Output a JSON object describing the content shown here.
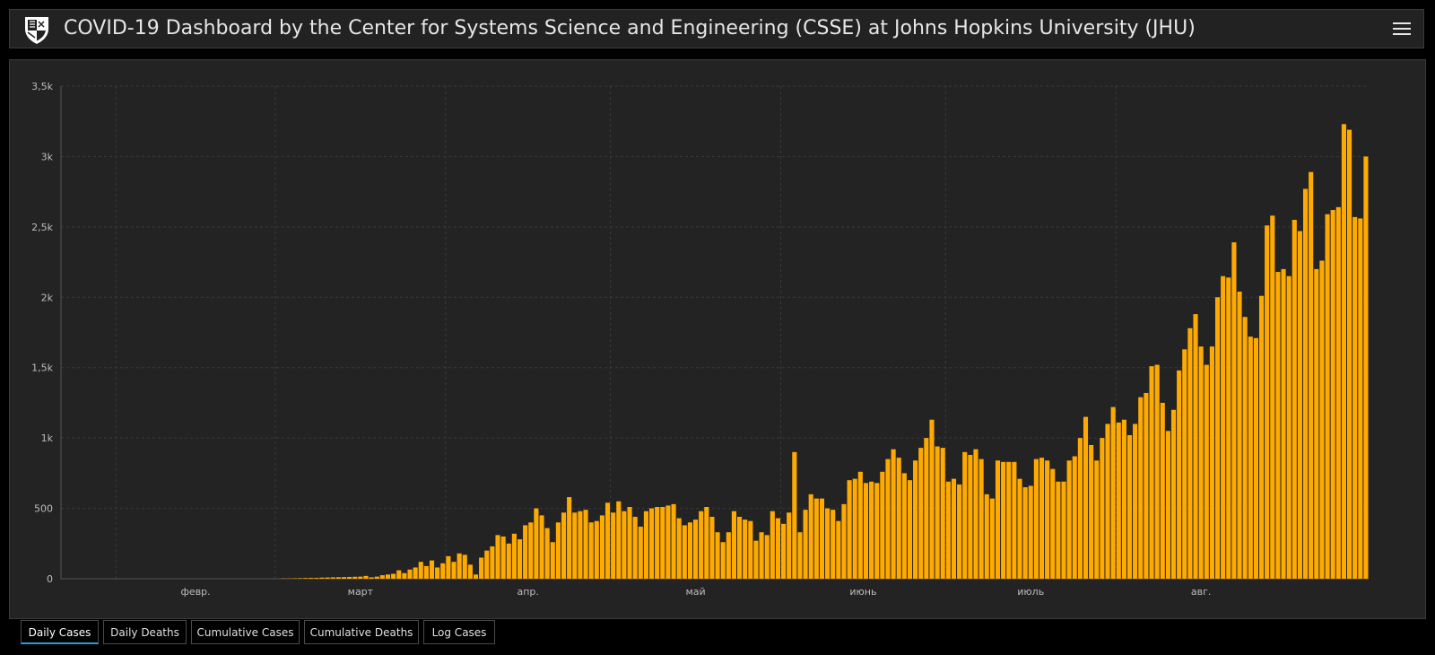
{
  "header": {
    "title": "COVID-19 Dashboard by the Center for Systems Science and Engineering (CSSE) at Johns Hopkins University (JHU)"
  },
  "colors": {
    "bar": "#FFAA00",
    "background": "#232323",
    "grid": "#3a3a3a",
    "axis_text": "#bdbdbd",
    "tab_active_accent": "#2a9ad9"
  },
  "tabs": [
    {
      "label": "Daily Cases",
      "active": true
    },
    {
      "label": "Daily Deaths",
      "active": false
    },
    {
      "label": "Cumulative Cases",
      "active": false
    },
    {
      "label": "Cumulative Deaths",
      "active": false
    },
    {
      "label": "Log Cases",
      "active": false
    }
  ],
  "chart_data": {
    "type": "bar",
    "title": "",
    "xlabel": "",
    "ylabel": "",
    "x_start": "2020-01-22",
    "x_ticks": [
      "февр.",
      "март",
      "апр.",
      "май",
      "июнь",
      "июль",
      "авг."
    ],
    "y_ticks": [
      "0",
      "500",
      "1k",
      "1,5k",
      "2k",
      "2,5k",
      "3k",
      "3,5k"
    ],
    "ylim": [
      0,
      3500
    ],
    "grid": true,
    "legend": "none",
    "values": [
      0,
      0,
      0,
      0,
      0,
      0,
      0,
      0,
      0,
      0,
      0,
      0,
      0,
      0,
      0,
      0,
      0,
      0,
      0,
      0,
      0,
      0,
      0,
      0,
      0,
      0,
      0,
      0,
      0,
      0,
      0,
      0,
      0,
      0,
      0,
      0,
      0,
      0,
      0,
      0,
      2,
      2,
      3,
      4,
      5,
      6,
      6,
      8,
      9,
      10,
      11,
      12,
      13,
      14,
      15,
      20,
      10,
      15,
      25,
      30,
      35,
      60,
      40,
      65,
      80,
      120,
      90,
      130,
      80,
      110,
      160,
      120,
      180,
      170,
      100,
      30,
      150,
      200,
      230,
      310,
      300,
      250,
      320,
      280,
      380,
      400,
      500,
      450,
      360,
      260,
      400,
      470,
      580,
      470,
      480,
      490,
      400,
      410,
      450,
      540,
      470,
      550,
      480,
      510,
      440,
      370,
      480,
      500,
      510,
      510,
      520,
      530,
      430,
      380,
      400,
      420,
      480,
      510,
      440,
      330,
      260,
      330,
      480,
      440,
      420,
      410,
      270,
      330,
      310,
      480,
      430,
      390,
      470,
      900,
      330,
      490,
      600,
      570,
      570,
      500,
      490,
      410,
      530,
      700,
      710,
      760,
      680,
      690,
      680,
      760,
      850,
      920,
      860,
      750,
      700,
      840,
      930,
      1000,
      1130,
      940,
      930,
      690,
      710,
      670,
      900,
      880,
      920,
      850,
      600,
      570,
      840,
      830,
      830,
      830,
      710,
      650,
      660,
      850,
      860,
      840,
      780,
      690,
      690,
      840,
      870,
      1000,
      1150,
      950,
      840,
      1000,
      1100,
      1220,
      1110,
      1130,
      1020,
      1100,
      1290,
      1320,
      1510,
      1520,
      1250,
      1050,
      1200,
      1480,
      1630,
      1780,
      1880,
      1650,
      1520,
      1650,
      2000,
      2150,
      2140,
      2390,
      2040,
      1860,
      1720,
      1710,
      2010,
      2510,
      2580,
      2180,
      2200,
      2150,
      2550,
      2470,
      2770,
      2890,
      2200,
      2260,
      2590,
      2620,
      2640,
      3230,
      3190,
      2570,
      2560,
      3000
    ]
  }
}
